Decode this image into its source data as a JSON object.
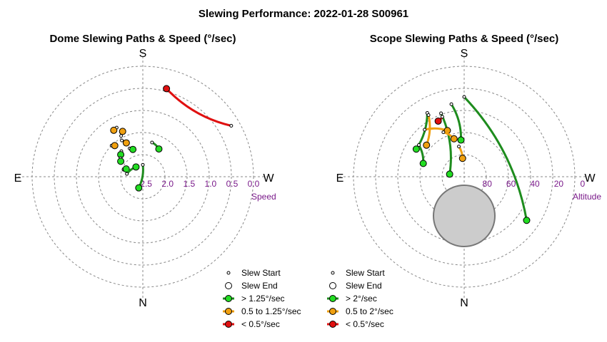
{
  "title": "Slewing Performance: 2022-01-28 S00961",
  "colors": {
    "green": "#1e8c1e",
    "green_fill": "#22dd22",
    "orange": "#f0a010",
    "orange_fill": "#f0a010",
    "red": "#e01010",
    "tick": "#7a1a8a",
    "dome_fill": "#cccccc"
  },
  "chart_data": [
    {
      "type": "scatter",
      "title": "Dome Slewing Paths & Speed (°/sec)",
      "projection": "polar",
      "directions": {
        "top": "S",
        "bottom": "N",
        "left": "E",
        "right": "W"
      },
      "radial_axis": {
        "label": "Speed",
        "ticks": [
          "2.5",
          "2.0",
          "1.5",
          "1.0",
          "0.5",
          "0.0"
        ]
      },
      "legend": {
        "position": "bottom-right",
        "items": [
          {
            "key": "start",
            "label": "Slew Start"
          },
          {
            "key": "end",
            "label": "Slew End"
          },
          {
            "key": "fast",
            "label": "> 1.25°/sec",
            "color": "green"
          },
          {
            "key": "mid",
            "label": "0.5 to 1.25°/sec",
            "color": "orange"
          },
          {
            "key": "slow",
            "label": "< 0.5°/sec",
            "color": "red"
          }
        ]
      },
      "slews": [
        {
          "class": "slow",
          "start": [
            60,
            0.2
          ],
          "end": [
            15,
            0.45
          ]
        },
        {
          "class": "mid",
          "start": [
            -30,
            1.6
          ],
          "end": [
            -26,
            1.7
          ]
        },
        {
          "class": "mid",
          "start": [
            -28,
            1.5
          ],
          "end": [
            -24,
            1.42
          ]
        },
        {
          "class": "mid",
          "start": [
            -45,
            1.55
          ],
          "end": [
            -42,
            1.6
          ]
        },
        {
          "class": "mid",
          "start": [
            -28,
            1.28
          ],
          "end": [
            -32,
            1.3
          ]
        },
        {
          "class": "fast",
          "start": [
            15,
            1.75
          ],
          "end": [
            30,
            1.83
          ]
        },
        {
          "class": "fast",
          "start": [
            -25,
            1.85
          ],
          "end": [
            -20,
            1.9
          ]
        },
        {
          "class": "fast",
          "start": [
            -40,
            1.8
          ],
          "end": [
            -45,
            1.85
          ]
        },
        {
          "class": "fast",
          "start": [
            -50,
            1.9
          ],
          "end": [
            -55,
            1.95
          ]
        },
        {
          "class": "fast",
          "start": [
            -70,
            2.1
          ],
          "end": [
            -65,
            2.15
          ]
        },
        {
          "class": "fast",
          "start": [
            -80,
            2.2
          ],
          "end": [
            -35,
            2.3
          ]
        },
        {
          "class": "fast",
          "start": [
            0,
            2.3
          ],
          "end": [
            200,
            2.3
          ]
        }
      ]
    },
    {
      "type": "scatter",
      "title": "Scope Slewing Paths & Speed (°/sec)",
      "projection": "polar",
      "directions": {
        "top": "S",
        "bottom": "N",
        "left": "E",
        "right": "W"
      },
      "radial_axis": {
        "label": "Altitude",
        "ticks": [
          "80",
          "60",
          "40",
          "20",
          "0"
        ]
      },
      "dome_shadow": {
        "az": 180,
        "alt": 70,
        "radius_deg": 15
      },
      "legend": {
        "position": "bottom-right",
        "items": [
          {
            "key": "start",
            "label": "Slew Start"
          },
          {
            "key": "end",
            "label": "Slew End"
          },
          {
            "key": "fast",
            "label": "> 2°/sec",
            "color": "green"
          },
          {
            "key": "mid",
            "label": "0.5 to 2°/sec",
            "color": "orange"
          },
          {
            "key": "slow",
            "label": "< 0.5°/sec",
            "color": "red"
          }
        ]
      },
      "slews": [
        {
          "class": "fast",
          "start": [
            0,
            25
          ],
          "end": [
            125,
            28
          ]
        },
        {
          "class": "fast",
          "start": [
            -30,
            30
          ],
          "end": [
            -60,
            45
          ]
        },
        {
          "class": "fast",
          "start": [
            -55,
            45
          ],
          "end": [
            -72,
            55
          ]
        },
        {
          "class": "fast",
          "start": [
            -10,
            30
          ],
          "end": [
            -5,
            60
          ]
        },
        {
          "class": "fast",
          "start": [
            -20,
            35
          ],
          "end": [
            -80,
            78
          ]
        },
        {
          "class": "mid",
          "start": [
            -30,
            32
          ],
          "end": [
            -50,
            50
          ]
        },
        {
          "class": "mid",
          "start": [
            -40,
            40
          ],
          "end": [
            -20,
            50
          ]
        },
        {
          "class": "mid",
          "start": [
            -25,
            50
          ],
          "end": [
            -15,
            58
          ]
        },
        {
          "class": "mid",
          "start": [
            -10,
            65
          ],
          "end": [
            -5,
            75
          ]
        },
        {
          "class": "slow",
          "start": [
            -20,
            38
          ],
          "end": [
            -25,
            40
          ]
        }
      ]
    }
  ]
}
